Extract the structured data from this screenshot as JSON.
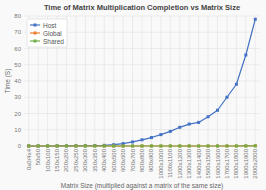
{
  "chart_data": {
    "type": "line",
    "title": "Time of Matrix Multiplication Completion vs Matrix Size",
    "xlabel": "Matrix Size (multiplied against a matrix of the same size)",
    "ylabel": "Time (S)",
    "categories": [
      "0x0/4x4",
      "50x50",
      "100x100",
      "150x150",
      "200x200",
      "250x250",
      "300x300",
      "350x350",
      "400x400",
      "500x500",
      "600x600",
      "700x700",
      "800x800",
      "900x900",
      "1000x1000",
      "1100x1100",
      "1200x1200",
      "1300x1300",
      "1400x1400",
      "1500x1500",
      "1600x1600",
      "1700x1700",
      "1800x1800",
      "1900x1900",
      "2000x2000"
    ],
    "series": [
      {
        "name": "Host",
        "color": "#4472c4",
        "values": [
          0.0,
          0.0,
          0.01,
          0.02,
          0.04,
          0.08,
          0.15,
          0.25,
          0.4,
          0.8,
          1.5,
          2.5,
          3.8,
          5.2,
          7.0,
          9.0,
          11.5,
          13.5,
          14.5,
          18.0,
          22.0,
          30.0,
          38.0,
          56.0,
          78.0
        ]
      },
      {
        "name": "Global",
        "color": "#ed7d31",
        "values": [
          0.0,
          0.0,
          0.0,
          0.0,
          0.0,
          0.0,
          0.0,
          0.0,
          0.0,
          0.0,
          0.0,
          0.0,
          0.0,
          0.0,
          0.0,
          0.0,
          0.0,
          0.0,
          0.0,
          0.0,
          0.0,
          0.0,
          0.0,
          0.05,
          0.15
        ]
      },
      {
        "name": "Shared",
        "color": "#70ad47",
        "values": [
          0.0,
          0.0,
          0.0,
          0.0,
          0.0,
          0.0,
          0.0,
          0.0,
          0.0,
          0.0,
          0.0,
          0.0,
          0.0,
          0.0,
          0.0,
          0.0,
          0.0,
          0.0,
          0.0,
          0.0,
          0.0,
          0.0,
          0.0,
          0.02,
          0.05
        ]
      }
    ],
    "ylim": [
      0,
      80
    ],
    "yticks": [
      0,
      10,
      20,
      30,
      40,
      50,
      60,
      70,
      80
    ],
    "grid": true,
    "legend": "upper left",
    "marker": "square"
  }
}
